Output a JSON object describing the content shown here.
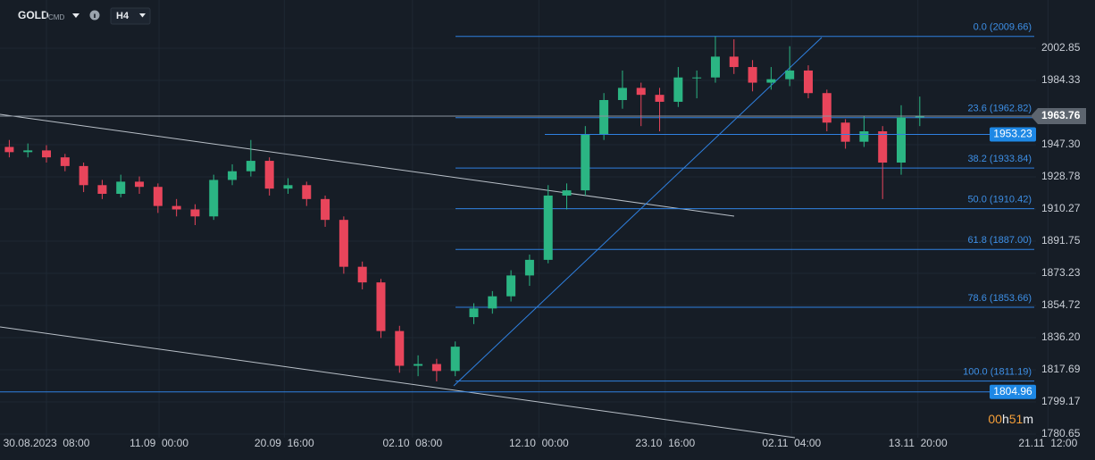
{
  "header": {
    "symbol": "GOLD",
    "symbol_type": "CMD",
    "timeframe": "H4"
  },
  "chart_data": {
    "type": "candlestick",
    "open": [
      1946,
      1943,
      1944,
      1940,
      1935,
      1924,
      1919,
      1926,
      1923,
      1912,
      1910,
      1906,
      1927,
      1932,
      1938,
      1922,
      1924,
      1916,
      1904,
      1877,
      1868,
      1840,
      1820,
      1821,
      1817,
      1848,
      1853,
      1860,
      1872,
      1881,
      1918,
      1921,
      1953,
      1973,
      1980,
      1976,
      1972,
      1986,
      1986,
      1998,
      1992,
      1983,
      1985,
      1990,
      1977,
      1960,
      1949,
      1955,
      1937,
      1963
    ],
    "high": [
      1950,
      1948,
      1947,
      1942,
      1937,
      1927,
      1930,
      1929,
      1925,
      1916,
      1913,
      1930,
      1936,
      1950,
      1940,
      1928,
      1926,
      1918,
      1906,
      1880,
      1870,
      1843,
      1826,
      1824,
      1834,
      1856,
      1863,
      1875,
      1884,
      1924,
      1925,
      1958,
      1977,
      1990,
      1983,
      1980,
      1992,
      1990,
      2009.66,
      2008,
      1996,
      1992,
      2004,
      1993,
      1979,
      1962,
      1964,
      1958,
      1970,
      1975
    ],
    "low": [
      1940,
      1940,
      1937,
      1932,
      1920,
      1916,
      1917,
      1919,
      1908,
      1906,
      1901,
      1904,
      1924,
      1929,
      1918,
      1919,
      1912,
      1900,
      1873,
      1864,
      1836,
      1816,
      1814,
      1811,
      1814,
      1844,
      1850,
      1857,
      1866,
      1879,
      1910,
      1918,
      1950,
      1968,
      1958,
      1955,
      1969,
      1974,
      1983,
      1988,
      1978,
      1979,
      1981,
      1974,
      1955,
      1945,
      1946,
      1916,
      1930,
      1958
    ],
    "close": [
      1943,
      1944,
      1940,
      1935,
      1924,
      1919,
      1926,
      1923,
      1912,
      1910,
      1906,
      1927,
      1932,
      1938,
      1922,
      1924,
      1916,
      1904,
      1877,
      1868,
      1840,
      1820,
      1821,
      1817,
      1831,
      1853,
      1860,
      1872,
      1881,
      1918,
      1921,
      1953,
      1973,
      1980,
      1976,
      1972,
      1986,
      1986,
      1998,
      1992,
      1983,
      1985,
      1990,
      1977,
      1960,
      1949,
      1955,
      1937,
      1963,
      1963.76
    ],
    "up_color": "#2bb583",
    "down_color": "#e8455b",
    "xlim": [
      -0.5,
      56.7
    ],
    "xticks": [
      {
        "value": 2,
        "label": "30.08.2023  08:00"
      },
      {
        "value": 8.06,
        "label": "11.09  00:00"
      },
      {
        "value": 14.8,
        "label": "20.09  16:00"
      },
      {
        "value": 21.7,
        "label": "02.10  08:00"
      },
      {
        "value": 28.5,
        "label": "12.10  00:00"
      },
      {
        "value": 35.3,
        "label": "23.10  16:00"
      },
      {
        "value": 42.1,
        "label": "02.11  04:00"
      },
      {
        "value": 48.9,
        "label": "13.11  20:00"
      },
      {
        "value": 55.9,
        "label": "21.11  12:00"
      }
    ],
    "ylim": [
      1778.6,
      2030.6
    ],
    "yticks": [
      2002.85,
      1984.33,
      {
        "value": 1947.3,
        "label": "1947.30"
      },
      1928.78,
      1910.27,
      1891.75,
      1873.23,
      1854.72,
      {
        "value": 1836.2,
        "label": "1836.20"
      },
      1817.69,
      1799.17,
      1780.65
    ],
    "grid": true,
    "fib_color": "#2f80e0",
    "fib_levels": [
      {
        "value": 2009.66,
        "label": "0.0 (2009.66)"
      },
      {
        "value": 1962.82,
        "label": "23.6 (1962.82)"
      },
      {
        "value": 1933.84,
        "label": "38.2 (1933.84)"
      },
      {
        "value": 1910.42,
        "label": "50.0 (1910.42)"
      },
      {
        "value": 1887.0,
        "label": "61.8 (1887.00)"
      },
      {
        "value": 1853.66,
        "label": "78.6 (1853.66)"
      },
      {
        "value": 1811.19,
        "label": "100.0 (1811.19)"
      }
    ],
    "price_lines": [
      1953.23,
      1804.96
    ],
    "current_price": 1963.76,
    "timer": [
      "00",
      "h",
      "51",
      "m"
    ]
  }
}
